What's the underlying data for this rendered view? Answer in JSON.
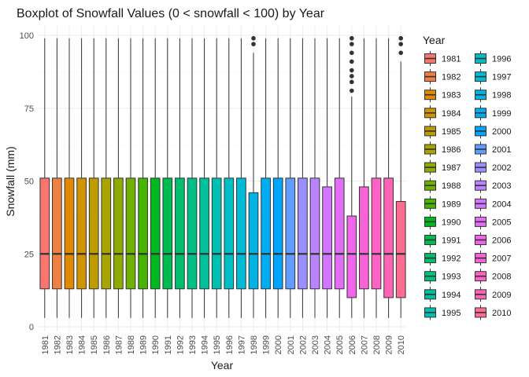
{
  "chart_data": {
    "type": "boxplot",
    "title": "Boxplot of Snowfall Values (0 < snowfall < 100) by Year",
    "xlabel": "Year",
    "ylabel": "Snowfall (mm)",
    "ylim": [
      0,
      100
    ],
    "yticks": [
      0,
      25,
      50,
      75,
      100
    ],
    "grid": true,
    "legend": {
      "title": "Year",
      "placement": "right",
      "columns": 2
    },
    "categories": [
      "1981",
      "1982",
      "1983",
      "1984",
      "1985",
      "1986",
      "1987",
      "1988",
      "1989",
      "1990",
      "1991",
      "1992",
      "1993",
      "1994",
      "1995",
      "1996",
      "1997",
      "1998",
      "1999",
      "2000",
      "2001",
      "2002",
      "2003",
      "2004",
      "2005",
      "2006",
      "2007",
      "2008",
      "2009",
      "2010"
    ],
    "colors": [
      "#F8766D",
      "#EE8043",
      "#E18A00",
      "#D09400",
      "#BE9C00",
      "#A8A400",
      "#8EAB00",
      "#6FB000",
      "#45B500",
      "#00B81F",
      "#00BB4E",
      "#00BE6C",
      "#00C086",
      "#00C19C",
      "#00C0B2",
      "#00BFC4",
      "#00BBD6",
      "#00B5E6",
      "#00ADF4",
      "#00A5FF",
      "#619CFF",
      "#9B8EFF",
      "#BB83FF",
      "#D376FF",
      "#E36EF6",
      "#F066EA",
      "#FA62D9",
      "#FF62C4",
      "#FF63B6",
      "#FF6C91"
    ],
    "boxes": [
      {
        "min": 3,
        "q1": 13,
        "median": 25,
        "q3": 51,
        "max": 99,
        "outliers": []
      },
      {
        "min": 3,
        "q1": 13,
        "median": 25,
        "q3": 51,
        "max": 99,
        "outliers": []
      },
      {
        "min": 3,
        "q1": 13,
        "median": 25,
        "q3": 51,
        "max": 99,
        "outliers": []
      },
      {
        "min": 3,
        "q1": 13,
        "median": 25,
        "q3": 51,
        "max": 99,
        "outliers": []
      },
      {
        "min": 3,
        "q1": 13,
        "median": 25,
        "q3": 51,
        "max": 99,
        "outliers": []
      },
      {
        "min": 3,
        "q1": 13,
        "median": 25,
        "q3": 51,
        "max": 99,
        "outliers": []
      },
      {
        "min": 3,
        "q1": 13,
        "median": 25,
        "q3": 51,
        "max": 99,
        "outliers": []
      },
      {
        "min": 3,
        "q1": 13,
        "median": 25,
        "q3": 51,
        "max": 99,
        "outliers": []
      },
      {
        "min": 3,
        "q1": 13,
        "median": 25,
        "q3": 51,
        "max": 99,
        "outliers": []
      },
      {
        "min": 3,
        "q1": 13,
        "median": 25,
        "q3": 51,
        "max": 99,
        "outliers": []
      },
      {
        "min": 3,
        "q1": 13,
        "median": 25,
        "q3": 51,
        "max": 99,
        "outliers": []
      },
      {
        "min": 3,
        "q1": 13,
        "median": 25,
        "q3": 51,
        "max": 99,
        "outliers": []
      },
      {
        "min": 3,
        "q1": 13,
        "median": 25,
        "q3": 51,
        "max": 99,
        "outliers": []
      },
      {
        "min": 3,
        "q1": 13,
        "median": 25,
        "q3": 51,
        "max": 99,
        "outliers": []
      },
      {
        "min": 3,
        "q1": 13,
        "median": 25,
        "q3": 51,
        "max": 99,
        "outliers": []
      },
      {
        "min": 3,
        "q1": 13,
        "median": 25,
        "q3": 51,
        "max": 99,
        "outliers": []
      },
      {
        "min": 3,
        "q1": 13,
        "median": 25,
        "q3": 51,
        "max": 99,
        "outliers": []
      },
      {
        "min": 3,
        "q1": 13,
        "median": 25,
        "q3": 46,
        "max": 94,
        "outliers": [
          97,
          99
        ]
      },
      {
        "min": 3,
        "q1": 13,
        "median": 25,
        "q3": 51,
        "max": 99,
        "outliers": []
      },
      {
        "min": 3,
        "q1": 13,
        "median": 25,
        "q3": 51,
        "max": 99,
        "outliers": []
      },
      {
        "min": 3,
        "q1": 13,
        "median": 25,
        "q3": 51,
        "max": 99,
        "outliers": []
      },
      {
        "min": 3,
        "q1": 13,
        "median": 25,
        "q3": 51,
        "max": 99,
        "outliers": []
      },
      {
        "min": 3,
        "q1": 13,
        "median": 25,
        "q3": 51,
        "max": 99,
        "outliers": []
      },
      {
        "min": 3,
        "q1": 13,
        "median": 25,
        "q3": 48,
        "max": 99,
        "outliers": []
      },
      {
        "min": 3,
        "q1": 13,
        "median": 25,
        "q3": 51,
        "max": 99,
        "outliers": []
      },
      {
        "min": 3,
        "q1": 10,
        "median": 25,
        "q3": 38,
        "max": 79,
        "outliers": [
          81,
          84,
          86,
          88,
          91,
          94,
          97,
          99
        ]
      },
      {
        "min": 3,
        "q1": 13,
        "median": 25,
        "q3": 48,
        "max": 99,
        "outliers": []
      },
      {
        "min": 3,
        "q1": 13,
        "median": 25,
        "q3": 51,
        "max": 99,
        "outliers": []
      },
      {
        "min": 3,
        "q1": 10,
        "median": 25,
        "q3": 51,
        "max": 99,
        "outliers": []
      },
      {
        "min": 3,
        "q1": 10,
        "median": 25,
        "q3": 43,
        "max": 91,
        "outliers": [
          94,
          97,
          99
        ]
      }
    ]
  }
}
